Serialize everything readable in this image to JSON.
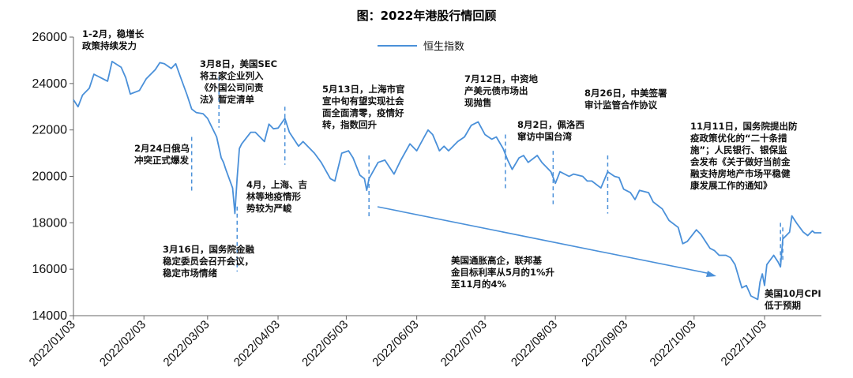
{
  "chart_data": {
    "type": "line",
    "title": "图：2022年港股行情回顾",
    "legend": "top-center",
    "ylim": [
      14000,
      26000
    ],
    "y_ticks": [
      14000,
      16000,
      18000,
      20000,
      22000,
      24000,
      26000
    ],
    "x_ticks": [
      "2022/01/03",
      "2022/02/03",
      "2022/03/03",
      "2022/04/03",
      "2022/05/03",
      "2022/06/03",
      "2022/07/03",
      "2022/08/03",
      "2022/09/03",
      "2022/10/03",
      "2022/11/03"
    ],
    "grid": false,
    "series": [
      {
        "name": "恒生指数",
        "color": "#4a90d9",
        "points": [
          [
            "2022-01-03",
            23300
          ],
          [
            "2022-01-05",
            23000
          ],
          [
            "2022-01-07",
            23500
          ],
          [
            "2022-01-10",
            23800
          ],
          [
            "2022-01-12",
            24400
          ],
          [
            "2022-01-14",
            24300
          ],
          [
            "2022-01-18",
            24100
          ],
          [
            "2022-01-20",
            24950
          ],
          [
            "2022-01-24",
            24700
          ],
          [
            "2022-01-26",
            24250
          ],
          [
            "2022-01-28",
            23550
          ],
          [
            "2022-02-01",
            23700
          ],
          [
            "2022-02-04",
            24200
          ],
          [
            "2022-02-08",
            24600
          ],
          [
            "2022-02-10",
            24900
          ],
          [
            "2022-02-12",
            24850
          ],
          [
            "2022-02-15",
            24650
          ],
          [
            "2022-02-17",
            24850
          ],
          [
            "2022-02-19",
            24300
          ],
          [
            "2022-02-22",
            23500
          ],
          [
            "2022-02-24",
            22900
          ],
          [
            "2022-02-26",
            22750
          ],
          [
            "2022-03-01",
            22700
          ],
          [
            "2022-03-03",
            22500
          ],
          [
            "2022-03-07",
            21700
          ],
          [
            "2022-03-09",
            20800
          ],
          [
            "2022-03-10",
            20600
          ],
          [
            "2022-03-11",
            20300
          ],
          [
            "2022-03-14",
            19500
          ],
          [
            "2022-03-15",
            18400
          ],
          [
            "2022-03-16",
            19900
          ],
          [
            "2022-03-17",
            21200
          ],
          [
            "2022-03-18",
            21400
          ],
          [
            "2022-03-22",
            21900
          ],
          [
            "2022-03-24",
            21900
          ],
          [
            "2022-03-28",
            21500
          ],
          [
            "2022-03-30",
            22250
          ],
          [
            "2022-04-01",
            22050
          ],
          [
            "2022-04-03",
            22080
          ],
          [
            "2022-04-06",
            22500
          ],
          [
            "2022-04-08",
            21900
          ],
          [
            "2022-04-12",
            21300
          ],
          [
            "2022-04-14",
            21500
          ],
          [
            "2022-04-19",
            21000
          ],
          [
            "2022-04-22",
            20600
          ],
          [
            "2022-04-26",
            19900
          ],
          [
            "2022-04-28",
            19800
          ],
          [
            "2022-05-01",
            21000
          ],
          [
            "2022-05-04",
            21100
          ],
          [
            "2022-05-06",
            20800
          ],
          [
            "2022-05-09",
            20050
          ],
          [
            "2022-05-11",
            19900
          ],
          [
            "2022-05-12",
            19400
          ],
          [
            "2022-05-13",
            19900
          ],
          [
            "2022-05-17",
            20600
          ],
          [
            "2022-05-20",
            20700
          ],
          [
            "2022-05-24",
            20100
          ],
          [
            "2022-05-27",
            20700
          ],
          [
            "2022-05-31",
            21400
          ],
          [
            "2022-06-03",
            21100
          ],
          [
            "2022-06-06",
            21650
          ],
          [
            "2022-06-08",
            22000
          ],
          [
            "2022-06-10",
            21800
          ],
          [
            "2022-06-13",
            21100
          ],
          [
            "2022-06-15",
            21300
          ],
          [
            "2022-06-17",
            21100
          ],
          [
            "2022-06-21",
            21500
          ],
          [
            "2022-06-24",
            21700
          ],
          [
            "2022-06-27",
            22200
          ],
          [
            "2022-06-30",
            22350
          ],
          [
            "2022-07-03",
            21800
          ],
          [
            "2022-07-06",
            21600
          ],
          [
            "2022-07-08",
            21700
          ],
          [
            "2022-07-11",
            21200
          ],
          [
            "2022-07-13",
            20700
          ],
          [
            "2022-07-15",
            20300
          ],
          [
            "2022-07-18",
            20800
          ],
          [
            "2022-07-20",
            20900
          ],
          [
            "2022-07-22",
            20600
          ],
          [
            "2022-07-26",
            20900
          ],
          [
            "2022-07-28",
            20600
          ],
          [
            "2022-08-01",
            20200
          ],
          [
            "2022-08-03",
            19700
          ],
          [
            "2022-08-05",
            20200
          ],
          [
            "2022-08-09",
            20000
          ],
          [
            "2022-08-11",
            20100
          ],
          [
            "2022-08-15",
            20000
          ],
          [
            "2022-08-17",
            19800
          ],
          [
            "2022-08-19",
            19800
          ],
          [
            "2022-08-23",
            19500
          ],
          [
            "2022-08-26",
            20200
          ],
          [
            "2022-08-29",
            20000
          ],
          [
            "2022-08-31",
            19950
          ],
          [
            "2022-09-02",
            19450
          ],
          [
            "2022-09-05",
            19300
          ],
          [
            "2022-09-07",
            19000
          ],
          [
            "2022-09-09",
            19400
          ],
          [
            "2022-09-13",
            19300
          ],
          [
            "2022-09-15",
            18900
          ],
          [
            "2022-09-19",
            18600
          ],
          [
            "2022-09-22",
            18100
          ],
          [
            "2022-09-26",
            17800
          ],
          [
            "2022-09-28",
            17100
          ],
          [
            "2022-09-30",
            17200
          ],
          [
            "2022-10-04",
            17700
          ],
          [
            "2022-10-06",
            17500
          ],
          [
            "2022-10-10",
            16900
          ],
          [
            "2022-10-12",
            16800
          ],
          [
            "2022-10-14",
            16600
          ],
          [
            "2022-10-17",
            16600
          ],
          [
            "2022-10-19",
            16500
          ],
          [
            "2022-10-21",
            16200
          ],
          [
            "2022-10-24",
            15200
          ],
          [
            "2022-10-26",
            15300
          ],
          [
            "2022-10-28",
            14850
          ],
          [
            "2022-10-31",
            14700
          ],
          [
            "2022-11-01",
            15450
          ],
          [
            "2022-11-02",
            15800
          ],
          [
            "2022-11-03",
            15300
          ],
          [
            "2022-11-04",
            16200
          ],
          [
            "2022-11-07",
            16600
          ],
          [
            "2022-11-09",
            16300
          ],
          [
            "2022-11-10",
            16100
          ],
          [
            "2022-11-11",
            17300
          ],
          [
            "2022-11-14",
            17600
          ],
          [
            "2022-11-15",
            18300
          ],
          [
            "2022-11-17",
            18000
          ],
          [
            "2022-11-20",
            17600
          ],
          [
            "2022-11-22",
            17450
          ],
          [
            "2022-11-24",
            17650
          ],
          [
            "2022-11-25",
            17570
          ],
          [
            "2022-11-28",
            17570
          ]
        ]
      }
    ],
    "event_markers": [
      {
        "date": "2022-02-24"
      },
      {
        "date": "2022-03-08"
      },
      {
        "date": "2022-03-16"
      },
      {
        "date": "2022-04-06"
      },
      {
        "date": "2022-05-13"
      },
      {
        "date": "2022-07-12"
      },
      {
        "date": "2022-08-02"
      },
      {
        "date": "2022-08-26"
      },
      {
        "date": "2022-11-10"
      },
      {
        "date": "2022-11-11"
      }
    ],
    "annotations": [
      {
        "lines": [
          "1-2月，稳增长",
          "政策持续发力"
        ]
      },
      {
        "lines": [
          "3月8日，美国SEC",
          "将五家企业列入",
          "《外国公司问责",
          "法》暂定清单"
        ]
      },
      {
        "lines": [
          "2月24日俄乌",
          "冲突正式爆发"
        ]
      },
      {
        "lines": [
          "4月，上海、吉",
          "林等地疫情形",
          "势较为严峻"
        ]
      },
      {
        "lines": [
          "3月16日，国务院金融",
          "稳定委员会召开会议，",
          "稳定市场情绪"
        ]
      },
      {
        "lines": [
          "5月13日，上海市官",
          "宣中旬有望实现社会",
          "面全面清零，疫情好",
          "转，指数回升"
        ]
      },
      {
        "lines": [
          "7月12日，中资地",
          "产美元债市场出",
          "现抛售"
        ]
      },
      {
        "lines": [
          "8月2日，佩洛西",
          "窜访中国台湾"
        ]
      },
      {
        "lines": [
          "8月26日，中美签署",
          "审计监管合作协议"
        ]
      },
      {
        "lines": [
          "11月11日，国务院提出防",
          "疫政策优化的“二十条措",
          "施”；人民银行、银保监",
          "会发布《关于做好当前金",
          "融支持房地产市场平稳健",
          "康发展工作的通知》"
        ]
      },
      {
        "lines": [
          "美国通胀高企，联邦基",
          "金目标利率从5月的1%升",
          "至11月的4%"
        ]
      },
      {
        "lines": [
          "美国10月CPI",
          "低于预期"
        ]
      }
    ]
  }
}
